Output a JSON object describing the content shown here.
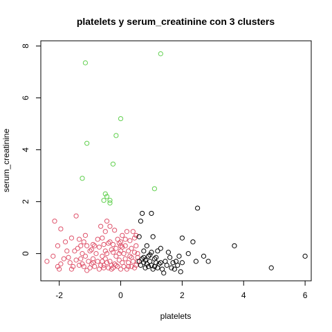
{
  "chart_data": {
    "type": "scatter",
    "title": "platelets  y  serum_creatinine con  3  clusters",
    "xlabel": "platelets",
    "ylabel": "serum_creatinine",
    "xlim": [
      -2.6,
      6.2
    ],
    "ylim": [
      -1.05,
      8.2
    ],
    "xticks": [
      -2,
      0,
      2,
      4,
      6
    ],
    "yticks": [
      0,
      2,
      4,
      6,
      8
    ],
    "grid": false,
    "legend": "none",
    "series": [
      {
        "color": "#DF536B",
        "points": [
          [
            -2.4,
            -0.3
          ],
          [
            -2.2,
            -0.1
          ],
          [
            -2.15,
            1.25
          ],
          [
            -2.05,
            0.3
          ],
          [
            -2.0,
            -0.6
          ],
          [
            -1.95,
            -0.4
          ],
          [
            -1.95,
            0.95
          ],
          [
            -1.8,
            0.45
          ],
          [
            -1.75,
            0.1
          ],
          [
            -1.65,
            -0.35
          ],
          [
            -1.6,
            0.6
          ],
          [
            -1.55,
            -0.5
          ],
          [
            -1.45,
            1.45
          ],
          [
            -1.4,
            0.2
          ],
          [
            -1.35,
            -0.45
          ],
          [
            -1.3,
            0.3
          ],
          [
            -1.3,
            -0.2
          ],
          [
            -1.25,
            0.0
          ],
          [
            -1.2,
            0.45
          ],
          [
            -1.2,
            -0.5
          ],
          [
            -1.15,
            -0.1
          ],
          [
            -1.1,
            0.3
          ],
          [
            -1.1,
            -0.65
          ],
          [
            -1.05,
            -0.3
          ],
          [
            -1.0,
            0.1
          ],
          [
            -0.95,
            -0.4
          ],
          [
            -0.9,
            0.35
          ],
          [
            -0.9,
            -0.2
          ],
          [
            -0.85,
            -0.5
          ],
          [
            -0.8,
            0.0
          ],
          [
            -0.75,
            -0.3
          ],
          [
            -0.7,
            0.25
          ],
          [
            -0.7,
            -0.6
          ],
          [
            -0.65,
            1.05
          ],
          [
            -0.6,
            -0.1
          ],
          [
            -0.6,
            0.6
          ],
          [
            -0.55,
            -0.45
          ],
          [
            -0.55,
            0.35
          ],
          [
            -0.5,
            0.85
          ],
          [
            -0.5,
            -0.2
          ],
          [
            -0.45,
            1.25
          ],
          [
            -0.45,
            0.0
          ],
          [
            -0.4,
            -0.55
          ],
          [
            -0.4,
            0.4
          ],
          [
            -0.35,
            1.05
          ],
          [
            -0.35,
            -0.3
          ],
          [
            -0.3,
            0.15
          ],
          [
            -0.3,
            -0.6
          ],
          [
            -0.25,
            0.05
          ],
          [
            -0.2,
            -0.4
          ],
          [
            -0.2,
            0.9
          ],
          [
            -0.15,
            -0.1
          ],
          [
            -0.15,
            0.2
          ],
          [
            -0.1,
            -0.5
          ],
          [
            -0.1,
            0.55
          ],
          [
            -0.05,
            -0.25
          ],
          [
            -0.05,
            0.4
          ],
          [
            0.0,
            -0.6
          ],
          [
            0.0,
            0.1
          ],
          [
            0.0,
            0.45
          ],
          [
            0.05,
            -0.35
          ],
          [
            0.05,
            0.7
          ],
          [
            0.1,
            0.0
          ],
          [
            0.1,
            -0.5
          ],
          [
            0.15,
            0.3
          ],
          [
            0.15,
            -0.2
          ],
          [
            0.2,
            0.85
          ],
          [
            0.2,
            -0.6
          ],
          [
            0.25,
            0.1
          ],
          [
            0.25,
            -0.35
          ],
          [
            0.3,
            0.5
          ],
          [
            0.3,
            -0.1
          ],
          [
            0.35,
            -0.5
          ],
          [
            0.35,
            0.2
          ],
          [
            0.4,
            0.85
          ],
          [
            0.4,
            -0.3
          ],
          [
            0.45,
            0.05
          ],
          [
            0.45,
            0.6
          ],
          [
            0.5,
            -0.45
          ],
          [
            0.5,
            0.3
          ],
          [
            0.55,
            -0.15
          ],
          [
            0.55,
            0.0
          ],
          [
            -1.7,
            -0.15
          ],
          [
            -1.5,
            0.1
          ],
          [
            -1.0,
            -0.55
          ],
          [
            -0.75,
            0.55
          ],
          [
            -0.25,
            -0.55
          ],
          [
            -2.05,
            -0.5
          ],
          [
            -1.85,
            -0.2
          ],
          [
            -1.6,
            -0.6
          ],
          [
            -1.45,
            -0.25
          ],
          [
            -1.35,
            0.55
          ],
          [
            -1.15,
            0.7
          ],
          [
            -0.95,
            0.15
          ],
          [
            -0.85,
            0.3
          ],
          [
            -0.6,
            -0.3
          ],
          [
            -0.55,
            -0.55
          ],
          [
            -0.45,
            -0.35
          ],
          [
            -0.35,
            0.45
          ],
          [
            -0.25,
            0.35
          ],
          [
            -0.15,
            -0.45
          ],
          [
            -0.05,
            0.0
          ],
          [
            0.05,
            0.25
          ],
          [
            0.15,
            0.55
          ],
          [
            0.25,
            -0.5
          ],
          [
            0.35,
            -0.15
          ],
          [
            0.45,
            -0.55
          ],
          [
            0.5,
            0.7
          ],
          [
            0.55,
            -0.3
          ],
          [
            -1.25,
            -0.4
          ],
          [
            -0.9,
            -0.35
          ],
          [
            -0.65,
            -0.45
          ],
          [
            -0.5,
            0.1
          ],
          [
            -0.3,
            -0.45
          ],
          [
            0.0,
            0.3
          ]
        ]
      },
      {
        "color": "#000000",
        "points": [
          [
            0.6,
            -0.3
          ],
          [
            0.6,
            0.65
          ],
          [
            0.65,
            -0.45
          ],
          [
            0.65,
            1.25
          ],
          [
            0.7,
            -0.2
          ],
          [
            0.7,
            1.55
          ],
          [
            0.75,
            -0.35
          ],
          [
            0.75,
            0.1
          ],
          [
            0.8,
            -0.55
          ],
          [
            0.8,
            -0.25
          ],
          [
            0.85,
            0.3
          ],
          [
            0.85,
            -0.4
          ],
          [
            0.9,
            -0.1
          ],
          [
            0.9,
            -0.5
          ],
          [
            0.95,
            -0.3
          ],
          [
            1.0,
            0.05
          ],
          [
            1.0,
            -0.45
          ],
          [
            1.0,
            1.55
          ],
          [
            1.05,
            -0.6
          ],
          [
            1.05,
            0.65
          ],
          [
            1.1,
            -0.2
          ],
          [
            1.1,
            -0.5
          ],
          [
            1.15,
            -0.35
          ],
          [
            1.2,
            0.1
          ],
          [
            1.2,
            -0.55
          ],
          [
            1.25,
            -0.4
          ],
          [
            1.3,
            0.2
          ],
          [
            1.3,
            -0.35
          ],
          [
            1.35,
            -0.6
          ],
          [
            1.4,
            -0.75
          ],
          [
            1.45,
            -0.3
          ],
          [
            1.5,
            -0.45
          ],
          [
            1.55,
            0.05
          ],
          [
            1.6,
            -0.15
          ],
          [
            1.65,
            -0.55
          ],
          [
            1.7,
            -0.35
          ],
          [
            1.75,
            -0.6
          ],
          [
            1.8,
            -0.3
          ],
          [
            1.85,
            -0.45
          ],
          [
            1.9,
            -0.1
          ],
          [
            1.95,
            -0.7
          ],
          [
            2.0,
            -0.35
          ],
          [
            2.0,
            0.6
          ],
          [
            2.2,
            0.0
          ],
          [
            2.35,
            0.45
          ],
          [
            2.45,
            -0.3
          ],
          [
            2.5,
            1.75
          ],
          [
            2.7,
            -0.1
          ],
          [
            2.85,
            -0.3
          ],
          [
            3.7,
            0.3
          ],
          [
            4.9,
            -0.55
          ],
          [
            6.0,
            -0.1
          ],
          [
            0.95,
            -0.05
          ],
          [
            1.15,
            -0.15
          ],
          [
            0.75,
            -0.15
          ]
        ]
      },
      {
        "color": "#61D04F",
        "points": [
          [
            -1.15,
            7.35
          ],
          [
            1.3,
            7.7
          ],
          [
            0.0,
            5.2
          ],
          [
            -0.15,
            4.55
          ],
          [
            -1.1,
            4.25
          ],
          [
            -0.25,
            3.45
          ],
          [
            -1.25,
            2.9
          ],
          [
            1.1,
            2.5
          ],
          [
            -0.5,
            2.3
          ],
          [
            -0.45,
            2.2
          ],
          [
            -0.55,
            2.05
          ],
          [
            -0.35,
            2.05
          ],
          [
            -0.35,
            1.95
          ]
        ]
      }
    ]
  }
}
